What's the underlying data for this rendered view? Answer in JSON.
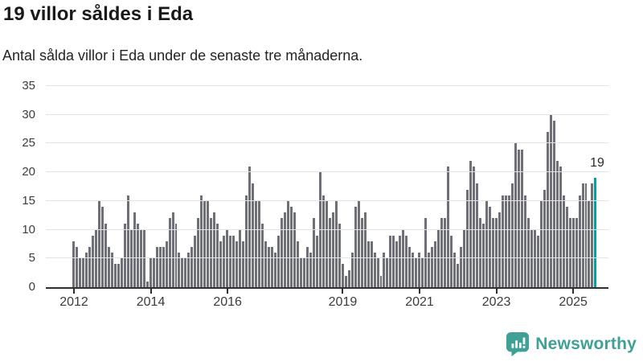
{
  "header": {
    "title": "19 villor såldes i Eda",
    "subtitle": "Antal sålda villor i Eda under de senaste tre månaderna."
  },
  "chart_data": {
    "type": "bar",
    "title": "19 villor såldes i Eda",
    "subtitle": "Antal sålda villor i Eda under de senaste tre månaderna.",
    "start_month": "2012-01",
    "values": [
      8,
      7,
      5,
      5,
      6,
      7,
      9,
      10,
      15,
      14,
      11,
      7,
      6,
      4,
      4,
      5,
      11,
      16,
      10,
      13,
      11,
      10,
      10,
      1,
      5,
      5,
      7,
      7,
      7,
      8,
      12,
      13,
      11,
      6,
      5,
      5,
      6,
      7,
      9,
      12,
      16,
      15,
      15,
      12,
      13,
      11,
      8,
      9,
      10,
      9,
      9,
      8,
      10,
      8,
      16,
      21,
      18,
      15,
      15,
      11,
      8,
      7,
      7,
      6,
      9,
      12,
      13,
      15,
      14,
      13,
      8,
      5,
      5,
      7,
      6,
      12,
      9,
      20,
      16,
      15,
      12,
      13,
      15,
      11,
      4,
      2,
      3,
      6,
      14,
      15,
      12,
      13,
      8,
      8,
      6,
      5,
      2,
      6,
      5,
      9,
      9,
      8,
      9,
      10,
      9,
      7,
      6,
      5,
      6,
      5,
      12,
      6,
      7,
      8,
      10,
      12,
      12,
      21,
      9,
      6,
      4,
      7,
      10,
      17,
      22,
      21,
      18,
      12,
      11,
      15,
      14,
      12,
      12,
      13,
      16,
      16,
      16,
      18,
      25,
      24,
      24,
      16,
      12,
      10,
      10,
      9,
      15,
      17,
      27,
      30,
      29,
      22,
      21,
      16,
      14,
      12,
      12,
      12,
      16,
      18,
      18,
      15,
      18,
      19
    ],
    "highlight": {
      "index": 163,
      "value": 19,
      "annotation": "19",
      "meaning": "de senaste tre månaderna"
    },
    "y_ticks": [
      0,
      5,
      10,
      15,
      20,
      25,
      30,
      35
    ],
    "ylim": [
      0,
      35
    ],
    "x_tick_labels": [
      "2012",
      "2014",
      "2016",
      "2019",
      "2021",
      "2023",
      "2025"
    ],
    "x_tick_month_index": [
      0,
      24,
      48,
      84,
      108,
      132,
      156
    ],
    "grid": true,
    "legend": false,
    "colors": {
      "bar": "#6f6f78",
      "highlight": "#00a3a3",
      "grid": "#e3e3e3",
      "axis_line": "#2f2f2f",
      "tick_text": "#3c3c3c",
      "annotation_text": "#2a2a2a"
    }
  },
  "footer": {
    "brand": "Newsworthy",
    "brand_color": "#3fa096"
  }
}
